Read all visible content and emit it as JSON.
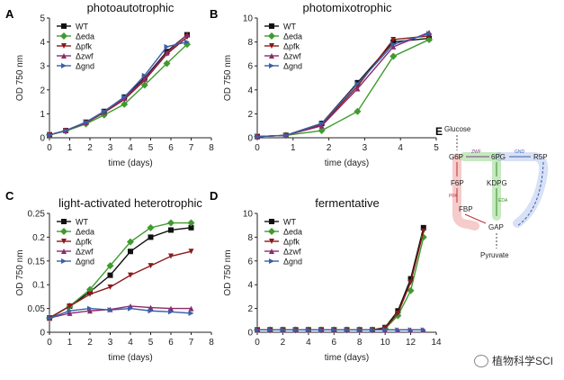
{
  "chart_data": [
    {
      "panel": "A",
      "type": "line",
      "title": "photoautotrophic",
      "xlabel": "time (days)",
      "ylabel": "OD 750 nm",
      "xlim": [
        0,
        8
      ],
      "ylim": [
        0,
        5
      ],
      "xticks": [
        0,
        1,
        2,
        3,
        4,
        5,
        6,
        7,
        8
      ],
      "yticks": [
        0,
        1,
        2,
        3,
        4,
        5
      ],
      "legend": "top-left",
      "series": [
        {
          "name": "WT",
          "x": [
            0,
            0.8,
            1.8,
            2.7,
            3.7,
            4.7,
            5.8,
            6.8
          ],
          "y": [
            0.12,
            0.3,
            0.65,
            1.1,
            1.7,
            2.5,
            3.6,
            4.3
          ]
        },
        {
          "name": "Δeda",
          "x": [
            0,
            0.8,
            1.8,
            2.7,
            3.7,
            4.7,
            5.8,
            6.8
          ],
          "y": [
            0.12,
            0.28,
            0.58,
            0.95,
            1.4,
            2.2,
            3.1,
            3.9
          ]
        },
        {
          "name": "Δpfk",
          "x": [
            0,
            0.8,
            1.8,
            2.7,
            3.7,
            4.7,
            5.8,
            6.8
          ],
          "y": [
            0.12,
            0.3,
            0.62,
            1.05,
            1.6,
            2.4,
            3.5,
            4.2
          ]
        },
        {
          "name": "Δzwf",
          "x": [
            0,
            0.8,
            1.8,
            2.7,
            3.7,
            4.7,
            5.8,
            6.8
          ],
          "y": [
            0.12,
            0.3,
            0.64,
            1.08,
            1.65,
            2.45,
            3.55,
            4.3
          ]
        },
        {
          "name": "Δgnd",
          "x": [
            0,
            0.8,
            1.8,
            2.7,
            3.7,
            4.7,
            5.8,
            6.8
          ],
          "y": [
            0.12,
            0.3,
            0.65,
            1.1,
            1.7,
            2.6,
            3.8,
            4.0
          ]
        }
      ]
    },
    {
      "panel": "B",
      "type": "line",
      "title": "photomixotrophic",
      "xlabel": "time (days)",
      "ylabel": "OD 750 nm",
      "xlim": [
        0,
        5
      ],
      "ylim": [
        0,
        10
      ],
      "xticks": [
        0,
        1,
        2,
        3,
        4,
        5
      ],
      "yticks": [
        0,
        2,
        4,
        6,
        8,
        10
      ],
      "legend": "top-left",
      "series": [
        {
          "name": "WT",
          "x": [
            0,
            0.8,
            1.8,
            2.8,
            3.8,
            4.8
          ],
          "y": [
            0.1,
            0.2,
            1.2,
            4.6,
            8.0,
            8.3
          ]
        },
        {
          "name": "Δeda",
          "x": [
            0,
            0.8,
            1.8,
            2.8,
            3.8,
            4.8
          ],
          "y": [
            0.1,
            0.2,
            0.6,
            2.2,
            6.8,
            8.2
          ]
        },
        {
          "name": "Δpfk",
          "x": [
            0,
            0.8,
            1.8,
            2.8,
            3.8,
            4.8
          ],
          "y": [
            0.1,
            0.2,
            1.1,
            4.3,
            8.2,
            8.5
          ]
        },
        {
          "name": "Δzwf",
          "x": [
            0,
            0.8,
            1.8,
            2.8,
            3.8,
            4.8
          ],
          "y": [
            0.1,
            0.2,
            1.0,
            4.1,
            7.6,
            8.8
          ]
        },
        {
          "name": "Δgnd",
          "x": [
            0,
            0.8,
            1.8,
            2.8,
            3.8,
            4.8
          ],
          "y": [
            0.1,
            0.2,
            1.2,
            4.5,
            7.8,
            8.7
          ]
        }
      ]
    },
    {
      "panel": "C",
      "type": "line",
      "title": "light-activated heterotrophic",
      "xlabel": "time (days)",
      "ylabel": "OD 750 nm",
      "xlim": [
        0,
        8
      ],
      "ylim": [
        0,
        0.25
      ],
      "xticks": [
        0,
        1,
        2,
        3,
        4,
        5,
        6,
        7,
        8
      ],
      "yticks": [
        0,
        0.05,
        0.1,
        0.15,
        0.2,
        0.25
      ],
      "legend": "top-left",
      "series": [
        {
          "name": "WT",
          "x": [
            0,
            1,
            2,
            3,
            4,
            5,
            6,
            7
          ],
          "y": [
            0.03,
            0.055,
            0.085,
            0.12,
            0.17,
            0.2,
            0.215,
            0.22
          ]
        },
        {
          "name": "Δeda",
          "x": [
            0,
            1,
            2,
            3,
            4,
            5,
            6,
            7
          ],
          "y": [
            0.03,
            0.055,
            0.09,
            0.14,
            0.19,
            0.22,
            0.23,
            0.23
          ]
        },
        {
          "name": "Δpfk",
          "x": [
            0,
            1,
            2,
            3,
            4,
            5,
            6,
            7
          ],
          "y": [
            0.03,
            0.055,
            0.08,
            0.095,
            0.12,
            0.14,
            0.16,
            0.17
          ]
        },
        {
          "name": "Δzwf",
          "x": [
            0,
            1,
            2,
            3,
            4,
            5,
            6,
            7
          ],
          "y": [
            0.03,
            0.04,
            0.045,
            0.048,
            0.055,
            0.052,
            0.05,
            0.05
          ]
        },
        {
          "name": "Δgnd",
          "x": [
            0,
            1,
            2,
            3,
            4,
            5,
            6,
            7
          ],
          "y": [
            0.03,
            0.045,
            0.05,
            0.047,
            0.05,
            0.045,
            0.043,
            0.04
          ]
        }
      ]
    },
    {
      "panel": "D",
      "type": "line",
      "title": "fermentative",
      "xlabel": "time (days)",
      "ylabel": "OD 750 nm",
      "xlim": [
        0,
        14
      ],
      "ylim": [
        0,
        10
      ],
      "xticks": [
        0,
        2,
        4,
        6,
        8,
        10,
        12,
        14
      ],
      "yticks": [
        0,
        2,
        4,
        6,
        8,
        10
      ],
      "legend": "top-left",
      "series": [
        {
          "name": "WT",
          "x": [
            0,
            1,
            2,
            3,
            4,
            5,
            6,
            7,
            8,
            9,
            10,
            11,
            12,
            13
          ],
          "y": [
            0.2,
            0.2,
            0.2,
            0.2,
            0.2,
            0.2,
            0.2,
            0.2,
            0.2,
            0.2,
            0.4,
            1.8,
            4.5,
            8.8
          ]
        },
        {
          "name": "Δeda",
          "x": [
            0,
            1,
            2,
            3,
            4,
            5,
            6,
            7,
            8,
            9,
            10,
            11,
            12,
            13
          ],
          "y": [
            0.2,
            0.2,
            0.2,
            0.2,
            0.2,
            0.2,
            0.2,
            0.2,
            0.2,
            0.2,
            0.3,
            1.4,
            3.5,
            8.0
          ]
        },
        {
          "name": "Δpfk",
          "x": [
            0,
            1,
            2,
            3,
            4,
            5,
            6,
            7,
            8,
            9,
            10,
            11,
            12,
            13
          ],
          "y": [
            0.2,
            0.2,
            0.2,
            0.2,
            0.2,
            0.2,
            0.2,
            0.2,
            0.2,
            0.2,
            0.35,
            1.6,
            4.2,
            8.5
          ]
        },
        {
          "name": "Δzwf",
          "x": [
            0,
            1,
            2,
            3,
            4,
            5,
            6,
            7,
            8,
            9,
            10,
            11,
            12,
            13
          ],
          "y": [
            0.2,
            0.2,
            0.2,
            0.2,
            0.2,
            0.2,
            0.2,
            0.2,
            0.2,
            0.2,
            0.2,
            0.2,
            0.2,
            0.2
          ]
        },
        {
          "name": "Δgnd",
          "x": [
            0,
            1,
            2,
            3,
            4,
            5,
            6,
            7,
            8,
            9,
            10,
            11,
            12,
            13
          ],
          "y": [
            0.2,
            0.2,
            0.2,
            0.2,
            0.2,
            0.2,
            0.2,
            0.2,
            0.2,
            0.2,
            0.2,
            0.2,
            0.2,
            0.2
          ]
        }
      ]
    }
  ],
  "series_styles": [
    {
      "color": "#111111",
      "marker": "square"
    },
    {
      "color": "#3f9b2f",
      "marker": "diamond"
    },
    {
      "color": "#8b1a1a",
      "marker": "triangle-down"
    },
    {
      "color": "#8b2a6b",
      "marker": "triangle-up"
    },
    {
      "color": "#3a5fa8",
      "marker": "triangle-right"
    }
  ],
  "pathway": {
    "panel": "E",
    "nodes": {
      "glucose": "Glucose",
      "g6p": "G6P",
      "pg6": "6PG",
      "r5p": "R5P",
      "f6p": "F6P",
      "kdpg": "KDPG",
      "fbp": "FBP",
      "gap": "GAP",
      "pyruvate": "Pyruvate"
    },
    "enzymes": {
      "zwf": "ZWF",
      "gnd": "GND",
      "pfk": "PFK",
      "eda": "EDA"
    },
    "colors": {
      "pfk_route": "#e46a6a",
      "eda_route": "#5cc04a",
      "gnd_route": "#7d9be0"
    }
  },
  "watermark": "植物科学SCI"
}
